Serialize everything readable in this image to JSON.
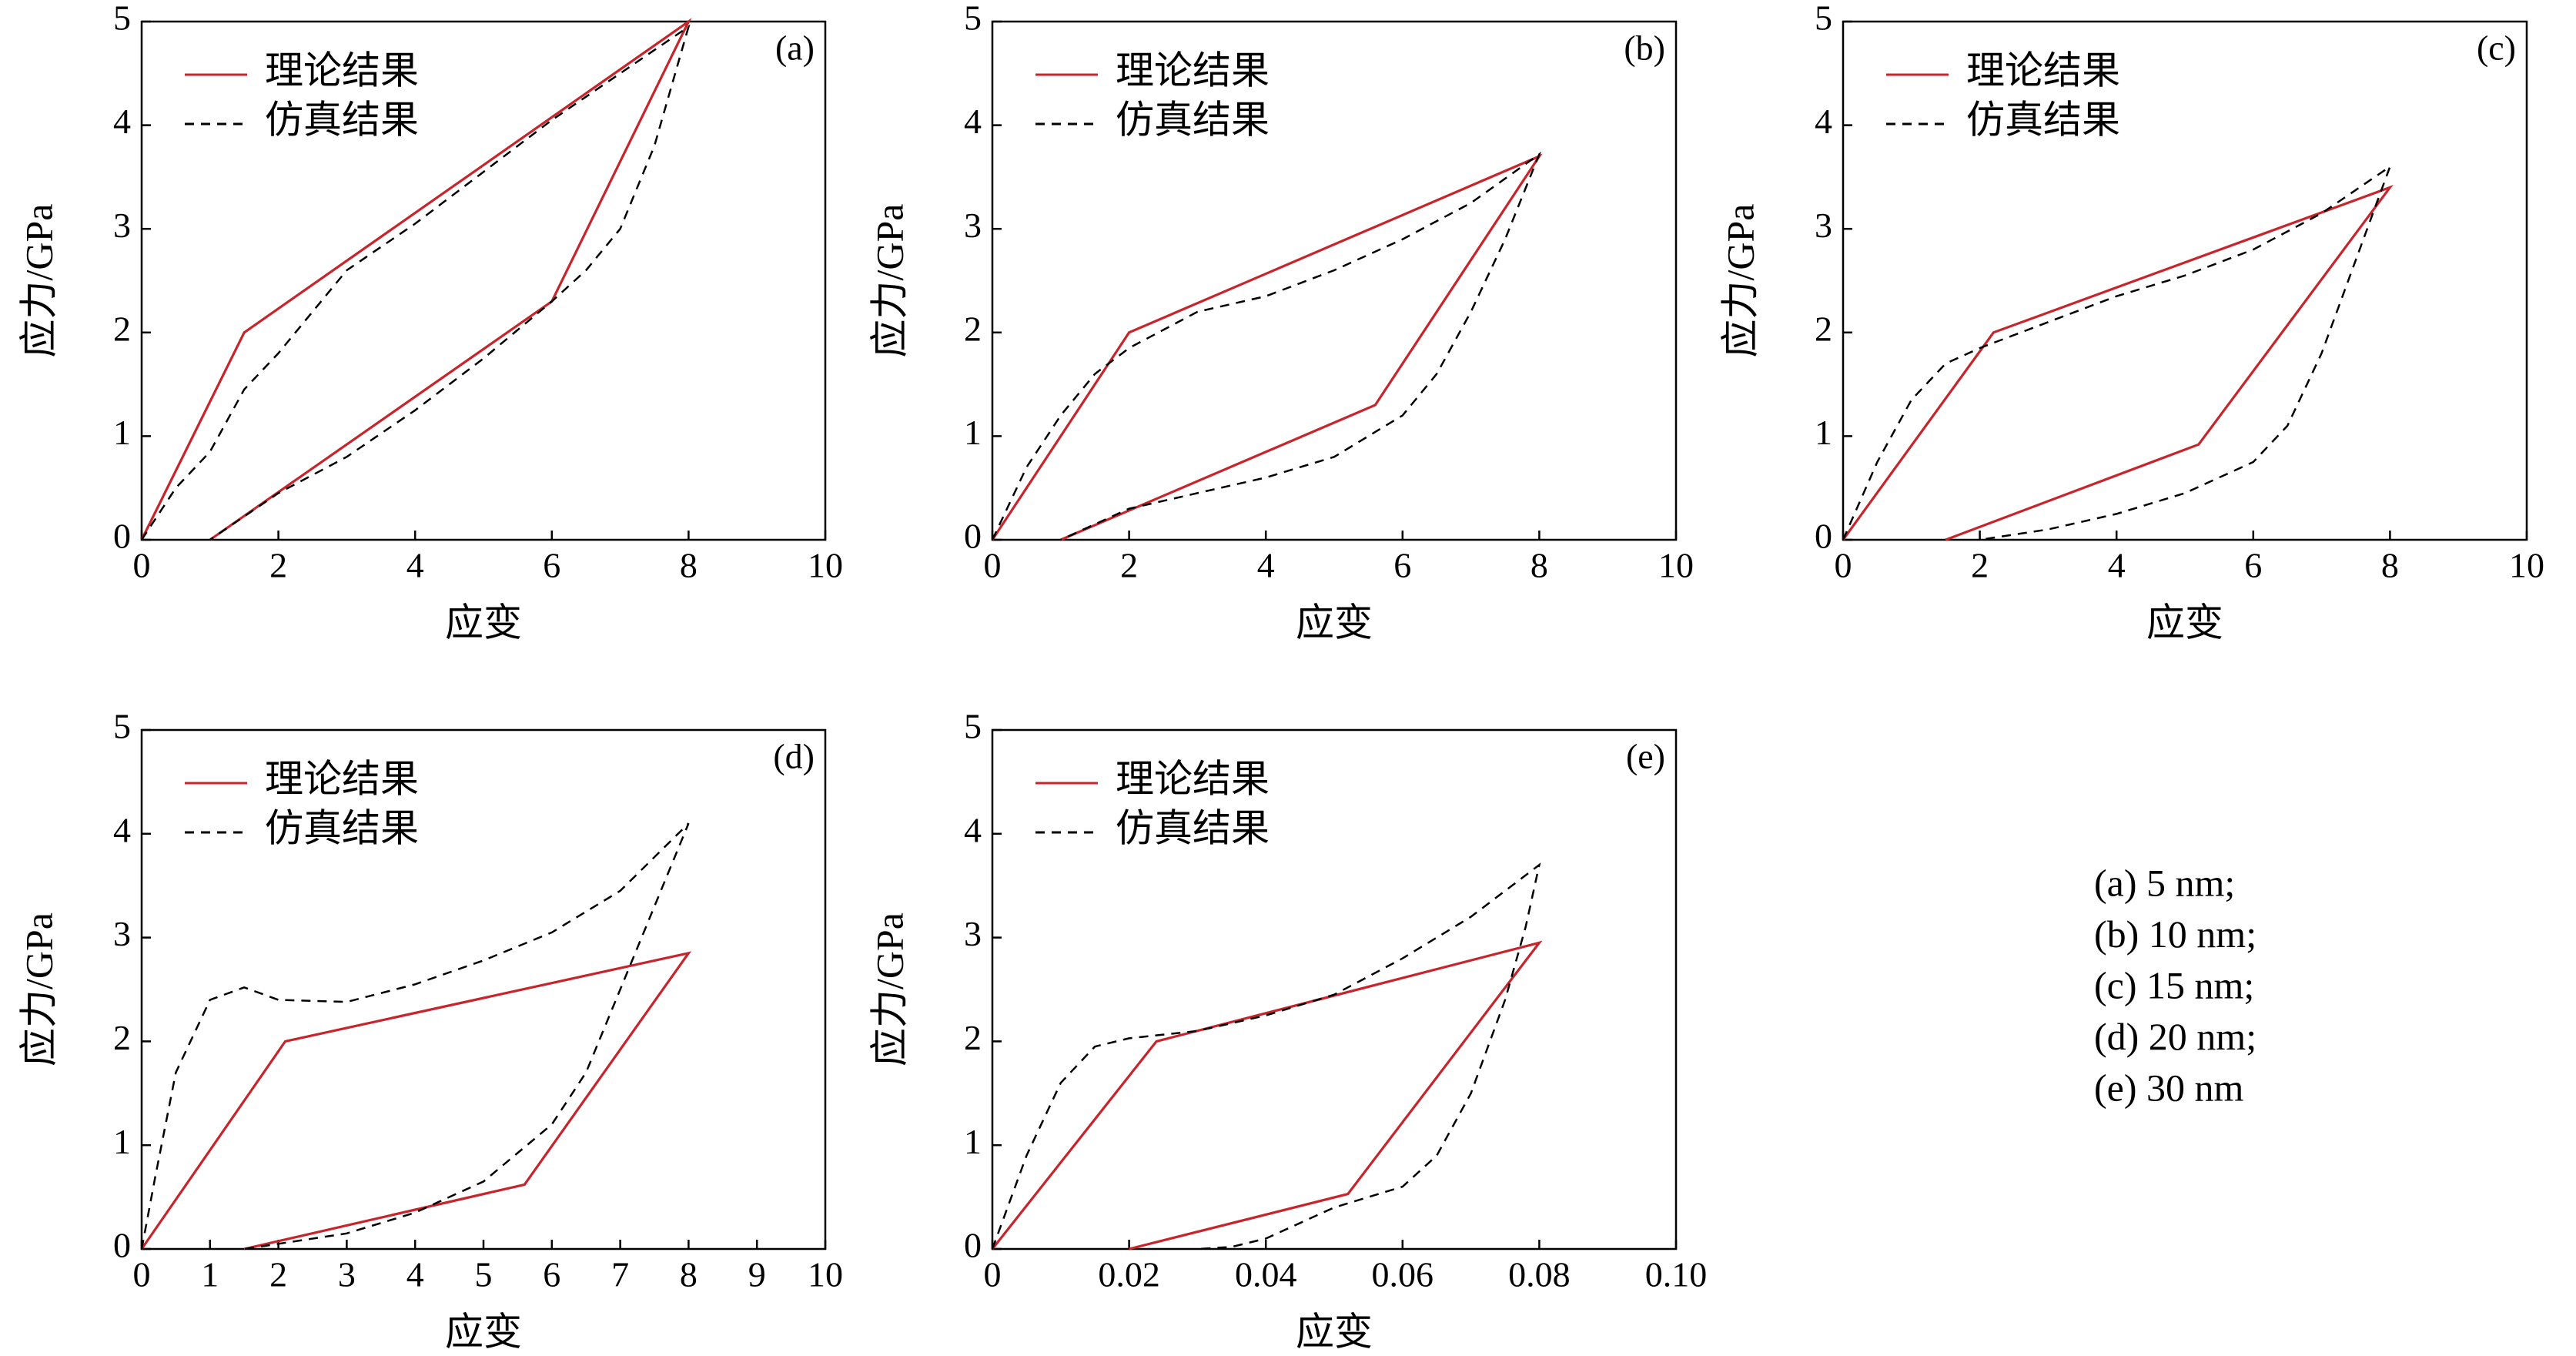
{
  "chart_data": [
    {
      "type": "line",
      "panel_label": "(a)",
      "x_label": "应变",
      "y_label": "应力/GPa",
      "xlim": [
        0,
        10
      ],
      "ylim": [
        0,
        5
      ],
      "xticks": [
        0,
        2,
        4,
        6,
        8,
        10
      ],
      "yticks": [
        0,
        1,
        2,
        3,
        4,
        5
      ],
      "series": [
        {
          "name": "理论结果",
          "color": "#c8242c",
          "dash": "none",
          "x": [
            0,
            1.5,
            8,
            6,
            1
          ],
          "values": [
            0,
            2,
            5,
            2.3,
            0
          ]
        },
        {
          "name": "仿真结果",
          "color": "#000000",
          "dash": "dashed",
          "x": [
            0,
            0.5,
            1,
            1.5,
            2,
            3,
            4,
            5,
            6,
            7,
            8,
            7.5,
            7,
            6.5,
            6,
            5,
            4,
            3,
            2,
            1
          ],
          "values": [
            0,
            0.5,
            0.85,
            1.45,
            1.8,
            2.6,
            3.05,
            3.55,
            4.05,
            4.5,
            4.95,
            3.8,
            3,
            2.6,
            2.3,
            1.75,
            1.25,
            0.8,
            0.45,
            0
          ]
        }
      ]
    },
    {
      "type": "line",
      "panel_label": "(b)",
      "x_label": "应变",
      "y_label": "应力/GPa",
      "xlim": [
        0,
        10
      ],
      "ylim": [
        0,
        5
      ],
      "xticks": [
        0,
        2,
        4,
        6,
        8,
        10
      ],
      "yticks": [
        0,
        1,
        2,
        3,
        4,
        5
      ],
      "series": [
        {
          "name": "理论结果",
          "color": "#c8242c",
          "dash": "none",
          "x": [
            0,
            2,
            8,
            5.6,
            1
          ],
          "values": [
            0,
            2,
            3.7,
            1.3,
            0
          ]
        },
        {
          "name": "仿真结果",
          "color": "#000000",
          "dash": "dashed",
          "x": [
            0,
            0.5,
            1,
            1.5,
            2,
            3,
            4,
            5,
            6,
            7,
            8,
            7.5,
            7,
            6.5,
            6,
            5,
            4,
            3,
            2,
            1
          ],
          "values": [
            0,
            0.7,
            1.2,
            1.6,
            1.85,
            2.2,
            2.35,
            2.6,
            2.9,
            3.25,
            3.72,
            2.9,
            2.2,
            1.6,
            1.2,
            0.8,
            0.6,
            0.45,
            0.3,
            0
          ]
        }
      ]
    },
    {
      "type": "line",
      "panel_label": "(c)",
      "x_label": "应变",
      "y_label": "应力/GPa",
      "xlim": [
        0,
        10
      ],
      "ylim": [
        0,
        5
      ],
      "xticks": [
        0,
        2,
        4,
        6,
        8,
        10
      ],
      "yticks": [
        0,
        1,
        2,
        3,
        4,
        5
      ],
      "series": [
        {
          "name": "理论结果",
          "color": "#c8242c",
          "dash": "none",
          "x": [
            0,
            2.2,
            8,
            5.2,
            1.5
          ],
          "values": [
            0,
            2,
            3.4,
            0.92,
            0
          ]
        },
        {
          "name": "仿真结果",
          "color": "#000000",
          "dash": "dashed",
          "x": [
            0,
            0.5,
            1,
            1.5,
            2,
            3,
            4,
            5,
            6,
            7,
            8,
            7.5,
            7,
            6.5,
            6,
            5,
            4,
            3,
            2
          ],
          "values": [
            0,
            0.75,
            1.35,
            1.7,
            1.85,
            2.1,
            2.35,
            2.55,
            2.8,
            3.15,
            3.6,
            2.7,
            1.8,
            1.1,
            0.75,
            0.45,
            0.25,
            0.1,
            0
          ]
        }
      ]
    },
    {
      "type": "line",
      "panel_label": "(d)",
      "x_label": "应变",
      "y_label": "应力/GPa",
      "xlim": [
        0,
        10
      ],
      "ylim": [
        0,
        5
      ],
      "xticks": [
        0,
        1,
        2,
        3,
        4,
        5,
        6,
        7,
        8,
        9,
        10
      ],
      "yticks": [
        0,
        1,
        2,
        3,
        4,
        5
      ],
      "series": [
        {
          "name": "理论结果",
          "color": "#c8242c",
          "dash": "none",
          "x": [
            0,
            2.1,
            8,
            5.6,
            1.5
          ],
          "values": [
            0,
            2,
            2.85,
            0.62,
            0
          ]
        },
        {
          "name": "仿真结果",
          "color": "#000000",
          "dash": "dashed",
          "x": [
            0,
            0.2,
            0.5,
            1,
            1.5,
            2,
            3,
            4,
            5,
            6,
            7,
            8,
            7.5,
            7,
            6.5,
            6,
            5,
            4,
            3,
            2,
            1.5
          ],
          "values": [
            0,
            0.7,
            1.7,
            2.4,
            2.52,
            2.4,
            2.38,
            2.55,
            2.78,
            3.05,
            3.45,
            4.1,
            3.3,
            2.5,
            1.7,
            1.2,
            0.65,
            0.35,
            0.15,
            0.05,
            0
          ]
        }
      ]
    },
    {
      "type": "line",
      "panel_label": "(e)",
      "x_label": "应变",
      "y_label": "应力/GPa",
      "xlim": [
        0,
        0.1
      ],
      "ylim": [
        0,
        5
      ],
      "xticks": [
        0,
        0.02,
        0.04,
        0.06,
        0.08,
        {
          "value": 0.1,
          "label": "0.10"
        }
      ],
      "yticks": [
        0,
        1,
        2,
        3,
        4,
        5
      ],
      "series": [
        {
          "name": "理论结果",
          "color": "#c8242c",
          "dash": "none",
          "x": [
            0,
            0.024,
            0.08,
            0.052,
            0.02
          ],
          "values": [
            0,
            2,
            2.95,
            0.53,
            0
          ]
        },
        {
          "name": "仿真结果",
          "color": "#000000",
          "dash": "dashed",
          "x": [
            0,
            0.005,
            0.01,
            0.015,
            0.02,
            0.03,
            0.04,
            0.05,
            0.06,
            0.07,
            0.08,
            0.078,
            0.075,
            0.07,
            0.065,
            0.06,
            0.05,
            0.045,
            0.04,
            0.035,
            0.03
          ],
          "values": [
            0,
            0.9,
            1.6,
            1.95,
            2.03,
            2.1,
            2.25,
            2.45,
            2.8,
            3.2,
            3.7,
            3.1,
            2.4,
            1.5,
            0.9,
            0.6,
            0.4,
            0.25,
            0.1,
            0.02,
            0
          ]
        }
      ]
    }
  ],
  "notes": [
    "(a) 5 nm;",
    "(b) 10 nm;",
    "(c) 15 nm;",
    "(d) 20 nm;",
    "(e) 30 nm"
  ]
}
